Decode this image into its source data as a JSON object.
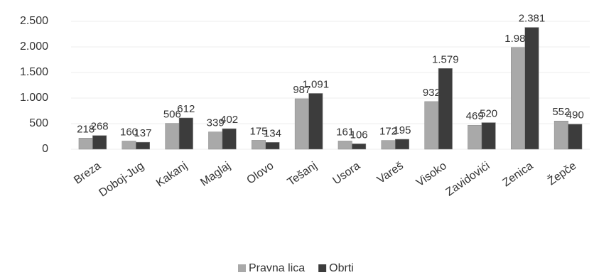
{
  "chart_data": {
    "type": "bar",
    "categories": [
      "Breza",
      "Doboj-Jug",
      "Kakanj",
      "Maglaj",
      "Olovo",
      "Tešanj",
      "Usora",
      "Vareš",
      "Visoko",
      "Zavidovići",
      "Zenica",
      "Žepče"
    ],
    "series": [
      {
        "name": "Pravna lica",
        "color": "#a9a9a9",
        "values": [
          218,
          160,
          506,
          339,
          175,
          987,
          161,
          172,
          932,
          469,
          1989,
          552
        ],
        "value_labels": [
          "218",
          "160",
          "506",
          "339",
          "175",
          "987",
          "161",
          "172",
          "932",
          "469",
          "1.989",
          "552"
        ]
      },
      {
        "name": "Obrti",
        "color": "#3c3c3c",
        "values": [
          268,
          137,
          612,
          402,
          134,
          1091,
          106,
          195,
          1579,
          520,
          2381,
          490
        ],
        "value_labels": [
          "268",
          "137",
          "612",
          "402",
          "134",
          "1.091",
          "106",
          "195",
          "1.579",
          "520",
          "2.381",
          "490"
        ]
      }
    ],
    "ylim": [
      0,
      2500
    ],
    "yticks": [
      0,
      500,
      {
        "value": 1000,
        "label": "1.000"
      },
      {
        "value": 1500,
        "label": "1.500"
      },
      {
        "value": 2000,
        "label": "2.000"
      },
      {
        "value": 2500,
        "label": "2.500"
      }
    ],
    "legend": "bottom"
  }
}
